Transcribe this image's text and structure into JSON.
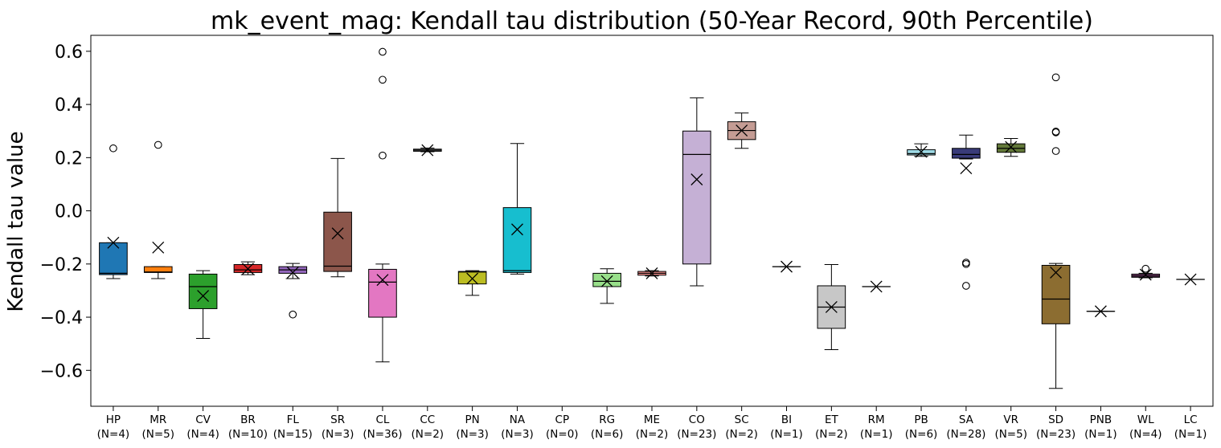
{
  "chart_data": {
    "type": "box",
    "title": "mk_event_mag: Kendall tau distribution (50-Year Record, 90th Percentile)",
    "xlabel": "",
    "ylabel": "Kendall tau value",
    "ylim": [
      -0.735,
      0.66
    ],
    "yticks": [
      {
        "value": 0.6,
        "label": "0.6"
      },
      {
        "value": 0.4,
        "label": "0.4"
      },
      {
        "value": 0.2,
        "label": "0.2"
      },
      {
        "value": 0.0,
        "label": "0.0"
      },
      {
        "value": -0.2,
        "label": "−0.2"
      },
      {
        "value": -0.4,
        "label": "−0.4"
      },
      {
        "value": -0.6,
        "label": "−0.6"
      }
    ],
    "grid": false,
    "legend": "none",
    "mean_marker": "x",
    "outlier_marker": "open-circle",
    "categories": [
      {
        "code": "HP",
        "n_label": "(N=4)",
        "color": "#1f77b4",
        "min": -0.255,
        "q1": -0.24,
        "median": -0.235,
        "q3": -0.12,
        "max": -0.12,
        "mean": -0.12,
        "outliers": [
          0.235
        ]
      },
      {
        "code": "MR",
        "n_label": "(N=5)",
        "color": "#ff7f0e",
        "min": -0.255,
        "q1": -0.232,
        "median": -0.23,
        "q3": -0.21,
        "max": -0.21,
        "mean": -0.138,
        "outliers": [
          0.248
        ]
      },
      {
        "code": "CV",
        "n_label": "(N=4)",
        "color": "#2ca02c",
        "min": -0.48,
        "q1": -0.368,
        "median": -0.285,
        "q3": -0.238,
        "max": -0.225,
        "mean": -0.32,
        "outliers": []
      },
      {
        "code": "BR",
        "n_label": "(N=10)",
        "color": "#d62728",
        "min": -0.24,
        "q1": -0.232,
        "median": -0.222,
        "q3": -0.202,
        "max": -0.192,
        "mean": -0.218,
        "outliers": []
      },
      {
        "code": "FL",
        "n_label": "(N=15)",
        "color": "#9467bd",
        "min": -0.255,
        "q1": -0.235,
        "median": -0.222,
        "q3": -0.21,
        "max": -0.198,
        "mean": -0.232,
        "outliers": [
          -0.39
        ]
      },
      {
        "code": "SR",
        "n_label": "(N=3)",
        "color": "#8c564b",
        "min": -0.248,
        "q1": -0.228,
        "median": -0.208,
        "q3": -0.005,
        "max": 0.197,
        "mean": -0.085,
        "outliers": []
      },
      {
        "code": "CL",
        "n_label": "(N=36)",
        "color": "#e377c2",
        "min": -0.568,
        "q1": -0.4,
        "median": -0.268,
        "q3": -0.22,
        "max": -0.2,
        "mean": -0.26,
        "outliers": [
          0.208,
          0.493,
          0.598
        ]
      },
      {
        "code": "CC",
        "n_label": "(N=2)",
        "color": "#7f7f7f",
        "min": 0.222,
        "q1": 0.224,
        "median": 0.228,
        "q3": 0.232,
        "max": 0.236,
        "mean": 0.228,
        "outliers": []
      },
      {
        "code": "PN",
        "n_label": "(N=3)",
        "color": "#bcbd22",
        "min": -0.318,
        "q1": -0.275,
        "median": -0.23,
        "q3": -0.228,
        "max": -0.225,
        "mean": -0.255,
        "outliers": []
      },
      {
        "code": "NA",
        "n_label": "(N=3)",
        "color": "#17becf",
        "min": -0.238,
        "q1": -0.232,
        "median": -0.225,
        "q3": 0.012,
        "max": 0.253,
        "mean": -0.07,
        "outliers": []
      },
      {
        "code": "CP",
        "n_label": "(N=0)",
        "color": "#aec7e8",
        "empty": true
      },
      {
        "code": "RG",
        "n_label": "(N=6)",
        "color": "#98df8a",
        "min": -0.348,
        "q1": -0.285,
        "median": -0.265,
        "q3": -0.235,
        "max": -0.218,
        "mean": -0.265,
        "outliers": []
      },
      {
        "code": "ME",
        "n_label": "(N=2)",
        "color": "#ff9896",
        "min": -0.245,
        "q1": -0.242,
        "median": -0.235,
        "q3": -0.228,
        "max": -0.225,
        "mean": -0.235,
        "outliers": []
      },
      {
        "code": "CO",
        "n_label": "(N=23)",
        "color": "#c5b0d5",
        "min": -0.282,
        "q1": -0.2,
        "median": 0.212,
        "q3": 0.3,
        "max": 0.425,
        "mean": 0.118,
        "outliers": []
      },
      {
        "code": "SC",
        "n_label": "(N=2)",
        "color": "#c49c94",
        "min": 0.235,
        "q1": 0.268,
        "median": 0.302,
        "q3": 0.335,
        "max": 0.368,
        "mean": 0.302,
        "outliers": []
      },
      {
        "code": "BI",
        "n_label": "(N=1)",
        "color": "#f7b6d2",
        "min": -0.21,
        "q1": -0.21,
        "median": -0.21,
        "q3": -0.21,
        "max": -0.21,
        "mean": -0.21,
        "outliers": []
      },
      {
        "code": "ET",
        "n_label": "(N=2)",
        "color": "#c7c7c7",
        "min": -0.522,
        "q1": -0.442,
        "median": -0.362,
        "q3": -0.282,
        "max": -0.202,
        "mean": -0.362,
        "outliers": []
      },
      {
        "code": "RM",
        "n_label": "(N=1)",
        "color": "#dbdb8d",
        "min": -0.285,
        "q1": -0.285,
        "median": -0.285,
        "q3": -0.285,
        "max": -0.285,
        "mean": -0.285,
        "outliers": []
      },
      {
        "code": "PB",
        "n_label": "(N=6)",
        "color": "#9edae5",
        "min": 0.205,
        "q1": 0.21,
        "median": 0.215,
        "q3": 0.23,
        "max": 0.252,
        "mean": 0.222,
        "outliers": []
      },
      {
        "code": "SA",
        "n_label": "(N=28)",
        "color": "#393b79",
        "min": 0.195,
        "q1": 0.198,
        "median": 0.212,
        "q3": 0.235,
        "max": 0.285,
        "mean": 0.16,
        "outliers": [
          -0.195,
          -0.2,
          -0.282
        ]
      },
      {
        "code": "VR",
        "n_label": "(N=5)",
        "color": "#637939",
        "min": 0.205,
        "q1": 0.22,
        "median": 0.235,
        "q3": 0.252,
        "max": 0.272,
        "mean": 0.24,
        "outliers": []
      },
      {
        "code": "SD",
        "n_label": "(N=23)",
        "color": "#8c6d31",
        "min": -0.668,
        "q1": -0.425,
        "median": -0.332,
        "q3": -0.205,
        "max": -0.198,
        "mean": -0.232,
        "outliers": [
          0.225,
          0.295,
          0.298,
          0.502
        ]
      },
      {
        "code": "PNB",
        "n_label": "(N=1)",
        "color": "#843c39",
        "min": -0.378,
        "q1": -0.378,
        "median": -0.378,
        "q3": -0.378,
        "max": -0.378,
        "mean": -0.378,
        "outliers": []
      },
      {
        "code": "WL",
        "n_label": "(N=4)",
        "color": "#7b4173",
        "min": -0.252,
        "q1": -0.25,
        "median": -0.245,
        "q3": -0.238,
        "max": -0.235,
        "mean": -0.24,
        "outliers": [
          -0.218
        ]
      },
      {
        "code": "LC",
        "n_label": "(N=1)",
        "color": "#5254a3",
        "min": -0.258,
        "q1": -0.258,
        "median": -0.258,
        "q3": -0.258,
        "max": -0.258,
        "mean": -0.258,
        "outliers": []
      }
    ]
  }
}
